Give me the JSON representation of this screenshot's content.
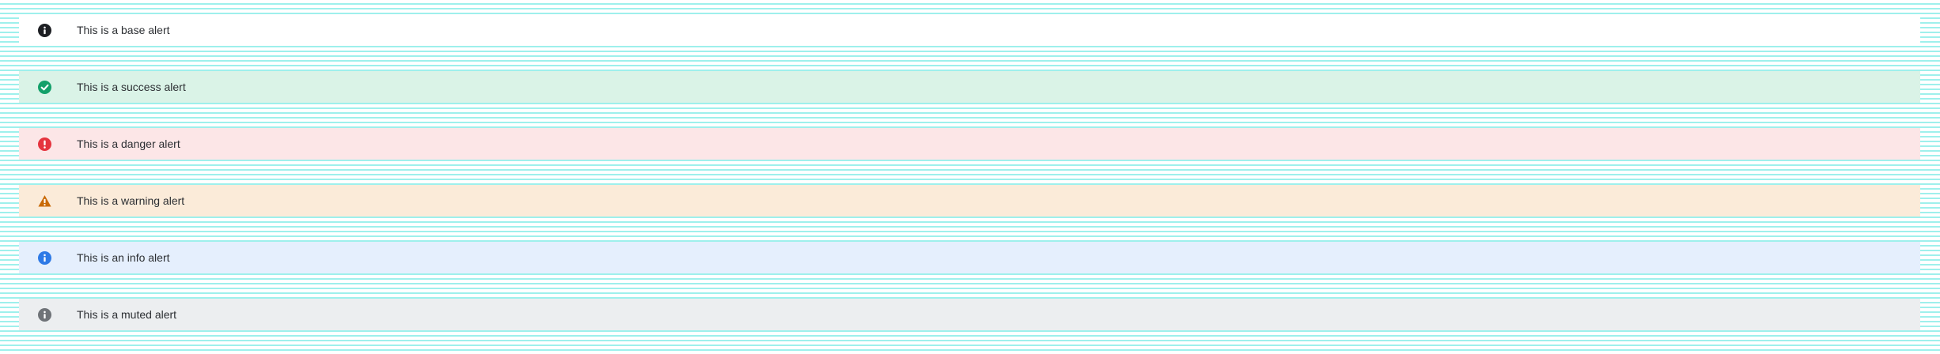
{
  "alerts": [
    {
      "variant": "base",
      "text": "This is a base alert",
      "icon": "info-icon",
      "background": "#ffffff",
      "icon_color": "#1d1f23"
    },
    {
      "variant": "success",
      "text": "This is a success alert",
      "icon": "check-circle-icon",
      "background": "#daf3e7",
      "icon_color": "#13a06a"
    },
    {
      "variant": "danger",
      "text": "This is a danger alert",
      "icon": "exclamation-circle-icon",
      "background": "#fce6e7",
      "icon_color": "#e5343f"
    },
    {
      "variant": "warning",
      "text": "This is a warning alert",
      "icon": "warning-triangle-icon",
      "background": "#fbebd9",
      "icon_color": "#c96a07"
    },
    {
      "variant": "info",
      "text": "This is an info alert",
      "icon": "info-icon",
      "background": "#e5effd",
      "icon_color": "#2e7ae6"
    },
    {
      "variant": "muted",
      "text": "This is a muted alert",
      "icon": "info-icon",
      "background": "#eceef0",
      "icon_color": "#6f7378"
    }
  ]
}
